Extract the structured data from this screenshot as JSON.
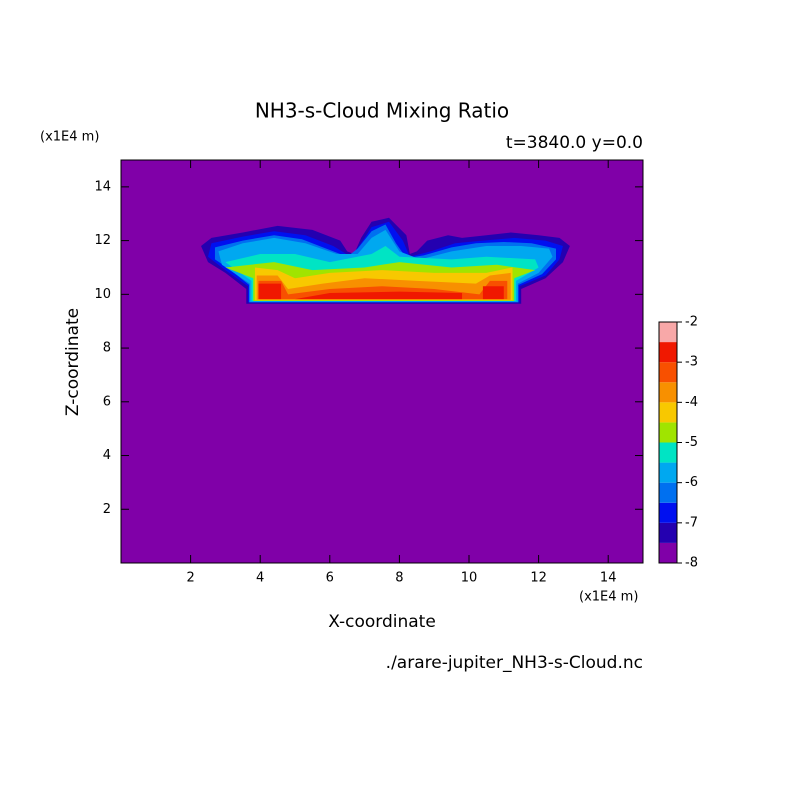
{
  "chart_data": {
    "type": "contour",
    "title": "NH3-s-Cloud Mixing Ratio",
    "subtitle": "t=3840.0 y=0.0",
    "x_label": "X-coordinate",
    "y_label": "Z-coordinate",
    "x_unit": "(x1E4 m)",
    "y_unit": "(x1E4 m)",
    "source": "./arare-jupiter_NH3-s-Cloud.nc",
    "xlim": [
      0,
      15
    ],
    "ylim": [
      0,
      15
    ],
    "xticks": [
      2,
      4,
      6,
      8,
      10,
      12,
      14
    ],
    "yticks": [
      2,
      4,
      6,
      8,
      10,
      12,
      14
    ],
    "colorbar_levels": [
      -8,
      -7.5,
      -7,
      -6.5,
      -6,
      -5.5,
      -5,
      -4.5,
      -4,
      -3.5,
      -3,
      -2.5,
      -2
    ],
    "colorbar_colors": [
      "#8000a8",
      "#2400b0",
      "#0010f0",
      "#0070f0",
      "#00a8f0",
      "#00e4c4",
      "#a0e400",
      "#f8c800",
      "#f89000",
      "#f85000",
      "#f01800",
      "#f8a8a8"
    ],
    "colorbar_ticks": [
      -8,
      -7,
      -6,
      -5,
      -4,
      -3,
      -2
    ],
    "regions": [
      {
        "level": -7.5,
        "x": [
          3.6,
          11.5,
          11.5,
          12.2,
          12.7,
          12.9,
          12.6,
          12.0,
          11.2,
          10.5,
          9.8,
          9.4,
          8.8,
          8.5,
          8.3,
          8.2,
          7.7,
          7.2,
          6.9,
          6.7,
          6.5,
          6.3,
          5.5,
          4.5,
          3.5,
          2.6,
          2.3,
          2.5,
          3.0,
          3.6
        ],
        "z": [
          9.65,
          9.65,
          10.2,
          10.6,
          11.2,
          11.8,
          12.1,
          12.2,
          12.3,
          12.2,
          12.1,
          12.2,
          12.0,
          11.6,
          11.5,
          12.2,
          12.85,
          12.7,
          12.1,
          11.5,
          11.6,
          12.0,
          12.4,
          12.55,
          12.3,
          12.1,
          11.8,
          11.2,
          10.8,
          10.2
        ]
      },
      {
        "level": -7,
        "x": [
          3.65,
          11.45,
          11.45,
          12.2,
          12.6,
          12.7,
          12.2,
          11.3,
          10.4,
          9.6,
          8.9,
          8.3,
          8.1,
          7.7,
          7.2,
          6.9,
          6.6,
          6.1,
          5.3,
          4.4,
          3.5,
          2.6,
          2.5,
          3.0,
          3.65
        ],
        "z": [
          9.7,
          9.7,
          10.3,
          10.7,
          11.3,
          11.8,
          12.0,
          12.1,
          12.0,
          11.9,
          11.6,
          11.4,
          12.0,
          12.7,
          12.5,
          11.9,
          11.4,
          11.8,
          12.2,
          12.35,
          12.15,
          11.9,
          11.4,
          10.9,
          10.3
        ]
      },
      {
        "level": -6.5,
        "x": [
          3.68,
          11.42,
          11.42,
          12.1,
          12.5,
          12.5,
          11.8,
          11.0,
          10.2,
          9.5,
          8.7,
          8.2,
          7.9,
          7.6,
          7.2,
          6.8,
          6.5,
          6.0,
          5.2,
          4.4,
          3.5,
          2.7,
          2.7,
          3.1,
          3.68
        ],
        "z": [
          9.7,
          9.7,
          10.35,
          10.75,
          11.3,
          11.7,
          11.9,
          11.95,
          11.9,
          11.75,
          11.45,
          11.35,
          11.9,
          12.6,
          12.35,
          11.7,
          11.4,
          11.65,
          12.05,
          12.2,
          12.0,
          11.75,
          11.3,
          10.95,
          10.35
        ]
      },
      {
        "level": -6,
        "x": [
          3.7,
          11.4,
          11.4,
          12.0,
          12.4,
          12.3,
          11.5,
          10.5,
          9.5,
          8.6,
          8.0,
          7.6,
          7.2,
          6.8,
          6.2,
          5.3,
          4.4,
          3.5,
          2.8,
          2.9,
          3.7
        ],
        "z": [
          9.72,
          9.72,
          10.4,
          10.8,
          11.4,
          11.7,
          11.8,
          11.8,
          11.6,
          11.3,
          11.6,
          12.4,
          12.1,
          11.5,
          11.5,
          11.9,
          12.1,
          11.9,
          11.6,
          11.1,
          10.4
        ]
      },
      {
        "level": -5.5,
        "x": [
          3.75,
          11.35,
          11.35,
          12.0,
          11.9,
          10.5,
          9.5,
          8.0,
          7.6,
          7.2,
          6.0,
          5.0,
          4.0,
          3.0,
          3.75
        ],
        "z": [
          9.75,
          9.75,
          10.5,
          11.0,
          11.3,
          11.4,
          11.3,
          11.4,
          11.8,
          11.5,
          11.2,
          11.5,
          11.5,
          11.2,
          10.5
        ]
      },
      {
        "level": -5,
        "x": [
          3.8,
          11.3,
          11.3,
          11.9,
          10.8,
          9.5,
          8.0,
          7.0,
          5.5,
          4.4,
          3.0,
          3.8
        ],
        "z": [
          9.75,
          9.75,
          10.6,
          10.9,
          11.1,
          11.0,
          11.2,
          11.0,
          10.9,
          11.2,
          11.0,
          10.6
        ]
      },
      {
        "level": -4.5,
        "x": [
          3.85,
          11.25,
          11.25,
          10.5,
          9.0,
          7.5,
          6.0,
          5.0,
          4.5,
          3.85
        ],
        "z": [
          9.78,
          9.78,
          11.0,
          10.8,
          10.8,
          10.9,
          10.8,
          10.6,
          10.9,
          11.0
        ]
      },
      {
        "level": -4,
        "x": [
          3.9,
          11.2,
          11.2,
          10.6,
          10.2,
          8.5,
          7.0,
          5.8,
          4.8,
          4.5,
          3.9
        ],
        "z": [
          9.8,
          9.8,
          10.8,
          10.7,
          10.4,
          10.5,
          10.6,
          10.4,
          10.2,
          10.7,
          10.7
        ]
      },
      {
        "level": -3.5,
        "x": [
          3.95,
          11.1,
          11.1,
          10.6,
          10.3,
          9.0,
          7.5,
          6.0,
          4.8,
          4.6,
          3.95
        ],
        "z": [
          9.82,
          9.82,
          10.5,
          10.5,
          10.0,
          10.2,
          10.3,
          10.2,
          10.0,
          10.5,
          10.5
        ]
      },
      {
        "level": -3,
        "x": [
          3.95,
          4.6,
          4.6,
          3.95
        ],
        "z": [
          9.82,
          9.82,
          10.4,
          10.4
        ]
      },
      {
        "level": -3,
        "x": [
          10.4,
          11.0,
          11.0,
          10.4
        ],
        "z": [
          9.82,
          9.82,
          10.3,
          10.3
        ]
      },
      {
        "level": -3,
        "x": [
          5.0,
          9.8,
          9.8,
          8.0,
          6.0
        ],
        "z": [
          9.82,
          9.82,
          10.05,
          10.1,
          10.05
        ]
      }
    ]
  }
}
